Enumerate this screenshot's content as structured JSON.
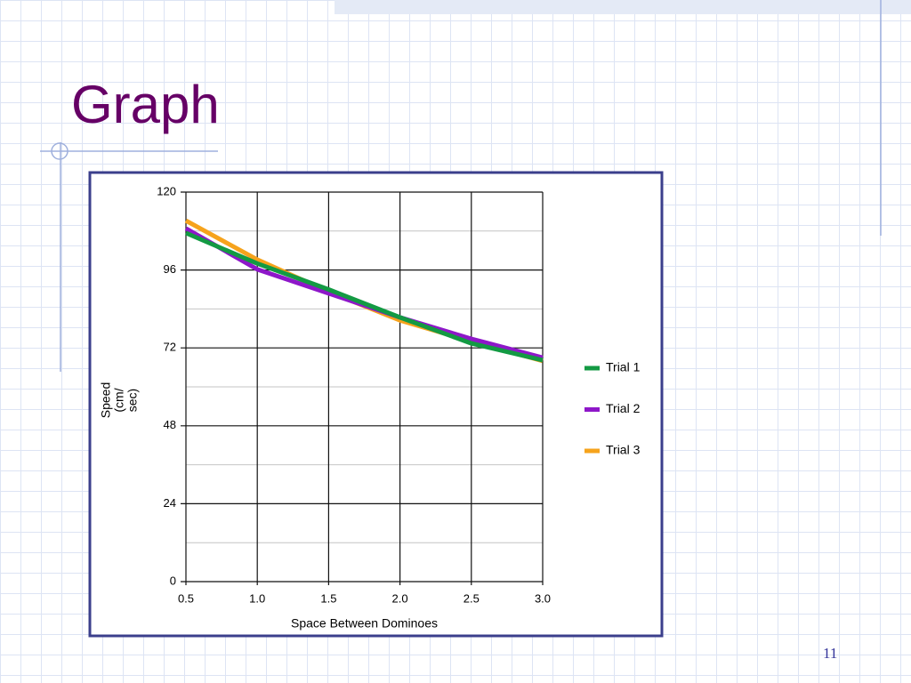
{
  "slide": {
    "title": "Graph",
    "page_number": "11"
  },
  "chart_data": {
    "type": "line",
    "x": [
      0.5,
      1,
      1.5,
      2,
      2.5,
      3
    ],
    "series": [
      {
        "name": "Trial 1",
        "color": "#139a43",
        "values": [
          107.4,
          98,
          90,
          81.4,
          73.4,
          68.2
        ]
      },
      {
        "name": "Trial 2",
        "color": "#8e17c9",
        "values": [
          108.8,
          96.2,
          88.8,
          81.4,
          74.8,
          69
        ]
      },
      {
        "name": "Trial 3",
        "color": "#f6a31c",
        "values": [
          111.2,
          99.2,
          89.3,
          80.5,
          74,
          68
        ]
      }
    ],
    "xlim": [
      0.5,
      3
    ],
    "xticks": [
      0.5,
      {
        "value": 1,
        "label": "1.0"
      },
      1.5,
      {
        "value": 2,
        "label": "2.0"
      },
      2.5,
      {
        "value": 3,
        "label": "3.0"
      }
    ],
    "ylim": [
      0,
      120
    ],
    "yticks": [
      0,
      24,
      48,
      72,
      96,
      120
    ],
    "minor_yticks": [
      12,
      36,
      60,
      84,
      108
    ],
    "grid": true,
    "xlabel": "Space Between Dominoes",
    "ylabel": [
      "Speed",
      "(cm/",
      "sec)"
    ],
    "legend": "right"
  }
}
